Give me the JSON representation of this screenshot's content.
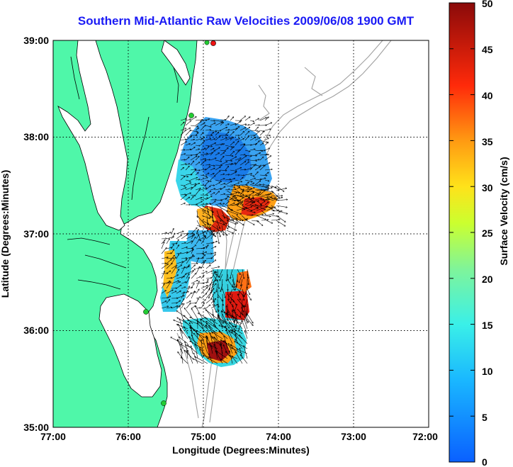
{
  "title": "Southern Mid-Atlantic Raw Velocities 2009/06/08 1900 GMT",
  "title_color": "#1a1af5",
  "xlabel": "Longitude (Degrees:Minutes)",
  "ylabel": "Latitude (Degrees:Minutes)",
  "x_ticks": [
    "77:00",
    "76:00",
    "75:00",
    "74:00",
    "73:00",
    "72:00"
  ],
  "y_ticks": [
    "39:00",
    "38:00",
    "37:00",
    "36:00",
    "35:00"
  ],
  "colorbar": {
    "label": "Surface Velocity (cm/s)",
    "ticks": [
      "50",
      "45",
      "40",
      "35",
      "30",
      "25",
      "20",
      "15",
      "10",
      "5",
      "0"
    ],
    "min": 0,
    "max": 50
  },
  "colors": {
    "land": "#4ff7a9",
    "coastline": "#000000",
    "bathymetry": "#a0a0a0",
    "station": "#22cc33",
    "station_red": "#ee1111"
  },
  "chart_data": {
    "type": "heatmap",
    "xlim": [
      -77,
      -72
    ],
    "ylim": [
      35,
      39
    ],
    "grid": true,
    "stations": [
      {
        "lon": -75.1,
        "lat": 39.0,
        "color": "red"
      },
      {
        "lon": -75.15,
        "lat": 38.99,
        "color": "green"
      },
      {
        "lon": -75.1,
        "lat": 38.23,
        "color": "green"
      },
      {
        "lon": -75.7,
        "lat": 36.2,
        "color": "green"
      },
      {
        "lon": -75.55,
        "lat": 35.26,
        "color": "green"
      }
    ]
  }
}
